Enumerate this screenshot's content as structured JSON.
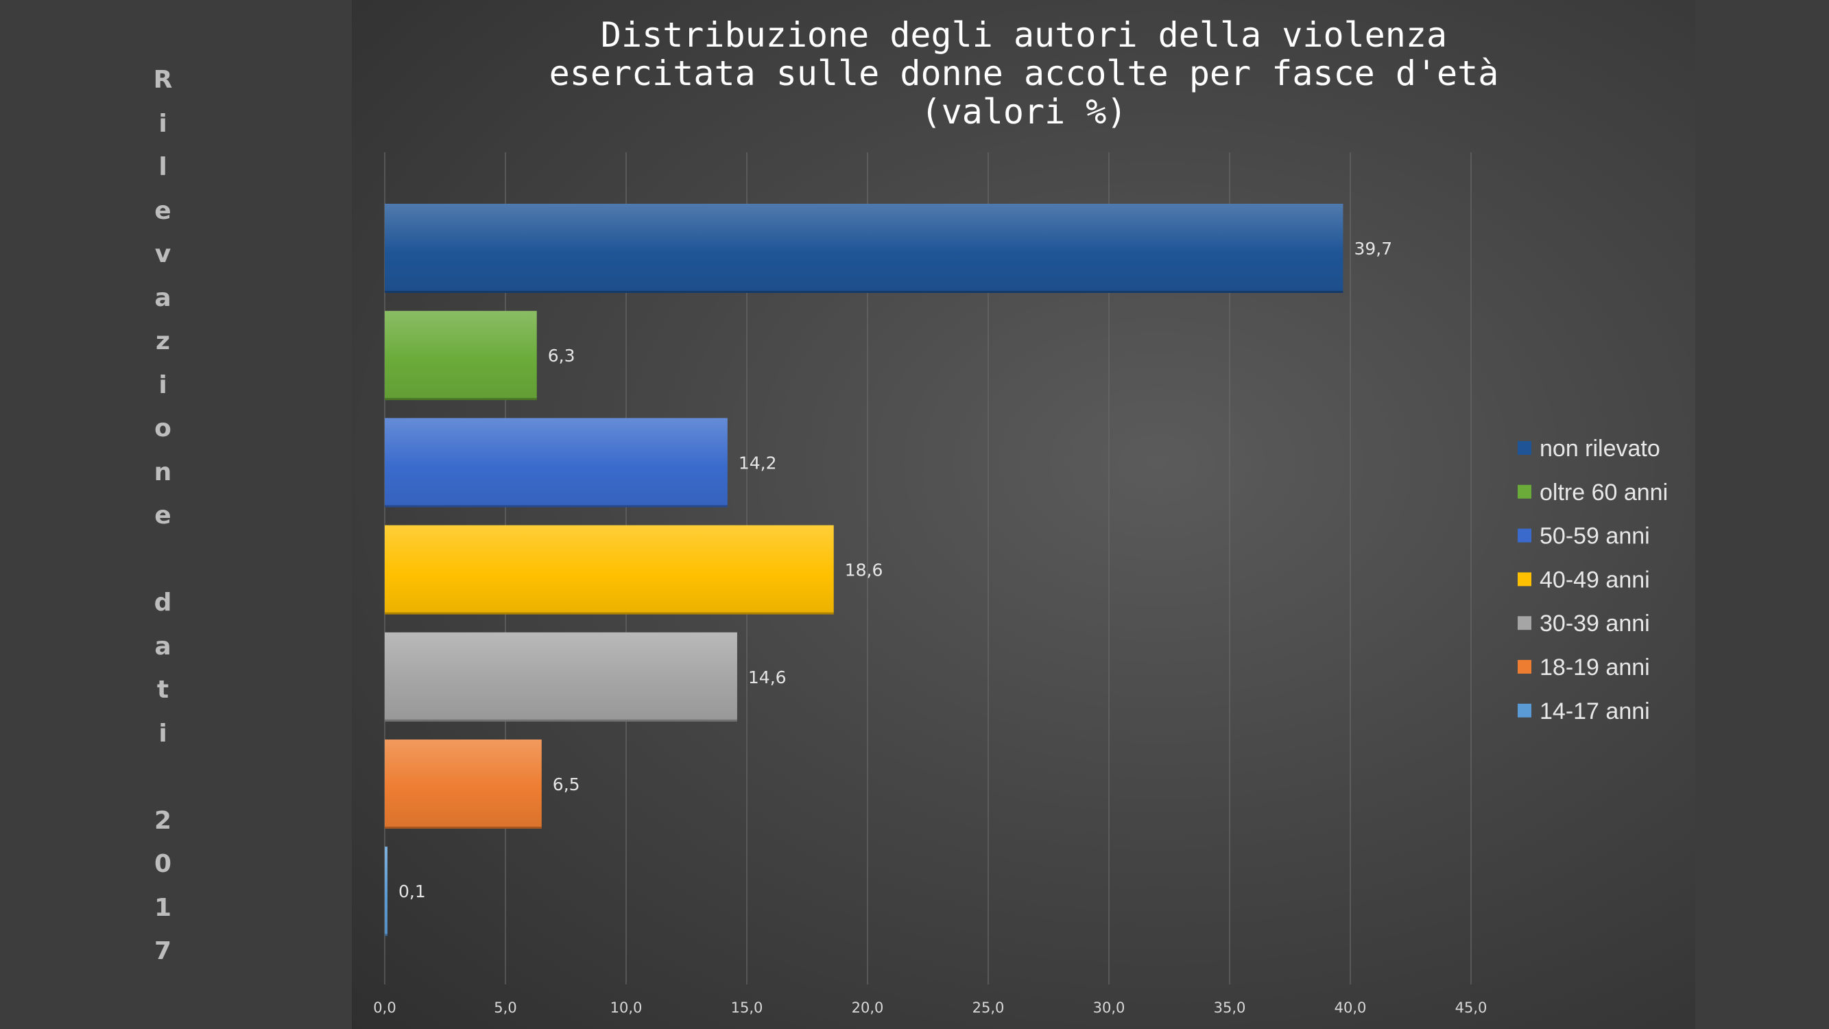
{
  "side_label": "Rilevazione dati 2017",
  "chart_data": {
    "type": "bar",
    "orientation": "horizontal",
    "title": [
      "Distribuzione degli autori della violenza",
      "esercitata sulle donne accolte per fasce d'età",
      "(valori %)"
    ],
    "xlabel": "",
    "ylabel": "",
    "xlim": [
      0,
      45
    ],
    "x_ticks": [
      0,
      5,
      10,
      15,
      20,
      25,
      30,
      35,
      40,
      45
    ],
    "x_tick_labels": [
      "0,0",
      "5,0",
      "10,0",
      "15,0",
      "20,0",
      "25,0",
      "30,0",
      "35,0",
      "40,0",
      "45,0"
    ],
    "grid": "vertical",
    "legend_position": "right",
    "bars": [
      {
        "name": "non rilevato",
        "value": 39.7,
        "label": "39,7",
        "color": "#1f5596"
      },
      {
        "name": "oltre 60 anni",
        "value": 6.3,
        "label": "6,3",
        "color": "#6aab3a"
      },
      {
        "name": "50-59 anni",
        "value": 14.2,
        "label": "14,2",
        "color": "#3a6bcc"
      },
      {
        "name": "40-49 anni",
        "value": 18.6,
        "label": "18,6",
        "color": "#ffc000"
      },
      {
        "name": "30-39 anni",
        "value": 14.6,
        "label": "14,6",
        "color": "#a5a5a5"
      },
      {
        "name": "18-19 anni",
        "value": 6.5,
        "label": "6,5",
        "color": "#ed7d31"
      },
      {
        "name": "14-17 anni",
        "value": 0.1,
        "label": "0,1",
        "color": "#5b9bd5"
      }
    ]
  }
}
